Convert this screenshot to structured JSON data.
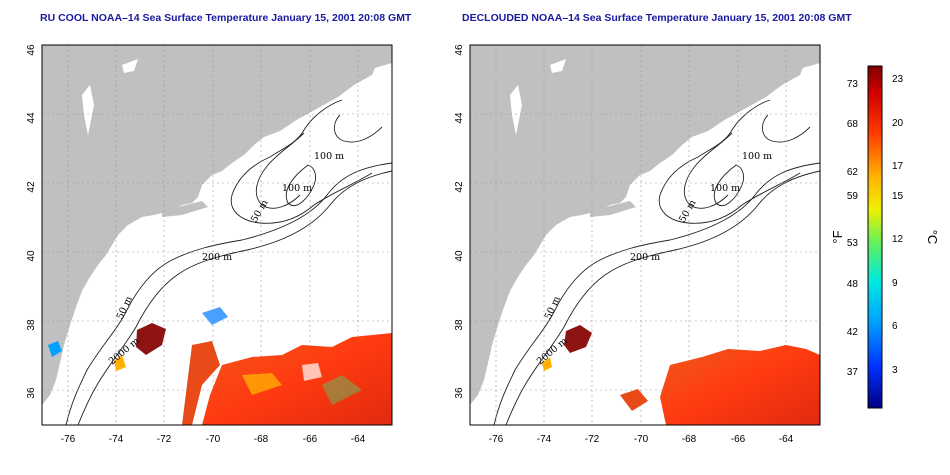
{
  "panels": [
    {
      "id": "raw",
      "title": "RU COOL NOAA–14 Sea Surface Temperature January 15, 2001 20:08 GMT",
      "contour_labels": [
        "100 m",
        "100 m",
        "50 m",
        "200 m",
        "50 m",
        "2000 m"
      ]
    },
    {
      "id": "decloud",
      "title": "DECLOUDED NOAA–14 Sea Surface Temperature January 15, 2001 20:08 GMT",
      "contour_labels": [
        "100 m",
        "100 m",
        "50 m",
        "200 m",
        "50 m",
        "2000 m"
      ]
    }
  ],
  "axes": {
    "x_ticks": [
      "-76",
      "-74",
      "-72",
      "-70",
      "-68",
      "-66",
      "-64"
    ],
    "y_ticks": [
      "46",
      "44",
      "42",
      "40",
      "38",
      "36"
    ],
    "lon_range": [
      -77.3,
      -63
    ],
    "lat_range": [
      35,
      46
    ]
  },
  "colorbar": {
    "f_label": "°F",
    "c_label": "°C",
    "f_ticks": [
      "73",
      "68",
      "62",
      "59",
      "53",
      "48",
      "42",
      "37"
    ],
    "c_ticks": [
      "23",
      "20",
      "17",
      "15",
      "12",
      "9",
      "6",
      "3"
    ]
  },
  "colors": {
    "land": "#c0c0c0",
    "ocean": "#ffffff",
    "grid": "#999999",
    "title": "#1a1aa0",
    "warm": "#e8401a",
    "hot": "#a01010"
  }
}
